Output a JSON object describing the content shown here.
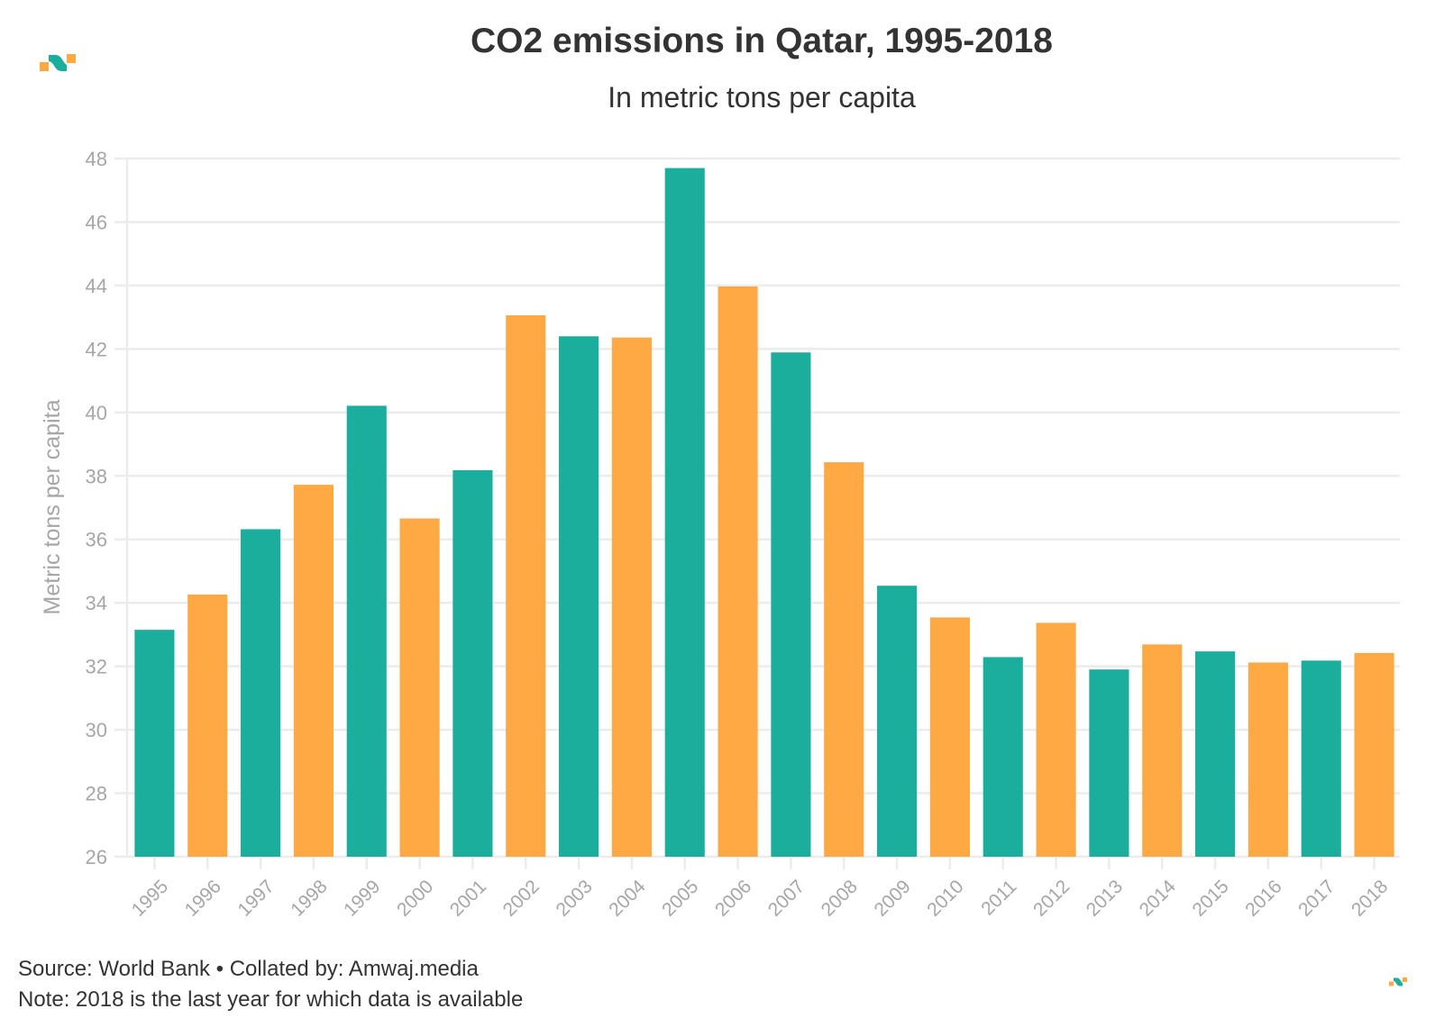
{
  "header": {
    "title": "CO2 emissions in Qatar, 1995-2018",
    "subtitle": "In metric tons per capita"
  },
  "footer": {
    "source": "Source: World Bank • Collated by: Amwaj.media",
    "note": "Note: 2018 is the last year for which data is available"
  },
  "icons": {
    "brand_logo": "amwaj-logo-icon"
  },
  "colors": {
    "teal": "#1cae9d",
    "orange": "#ffa945",
    "grid": "#ececec",
    "tick_text": "#a6a6a6",
    "title_text": "#333333"
  },
  "chart_data": {
    "type": "bar",
    "title": "CO2 emissions in Qatar, 1995-2018",
    "subtitle": "In metric tons per capita",
    "xlabel": "",
    "ylabel": "Metric tons per capita",
    "ylim": [
      26,
      48
    ],
    "yticks": [
      26,
      28,
      30,
      32,
      34,
      36,
      38,
      40,
      42,
      44,
      46,
      48
    ],
    "grid": true,
    "legend": "none",
    "x_label_rotation": "-45deg",
    "bar_color_pattern": [
      "teal",
      "orange"
    ],
    "categories": [
      "1995",
      "1996",
      "1997",
      "1998",
      "1999",
      "2000",
      "2001",
      "2002",
      "2003",
      "2004",
      "2005",
      "2006",
      "2007",
      "2008",
      "2009",
      "2010",
      "2011",
      "2012",
      "2013",
      "2014",
      "2015",
      "2016",
      "2017",
      "2018"
    ],
    "values": [
      33.15,
      34.26,
      36.32,
      37.72,
      40.21,
      36.66,
      38.18,
      43.06,
      42.4,
      42.36,
      47.7,
      43.97,
      41.89,
      38.43,
      34.54,
      33.54,
      32.29,
      33.37,
      31.9,
      32.69,
      32.47,
      32.12,
      32.18,
      32.42
    ]
  }
}
